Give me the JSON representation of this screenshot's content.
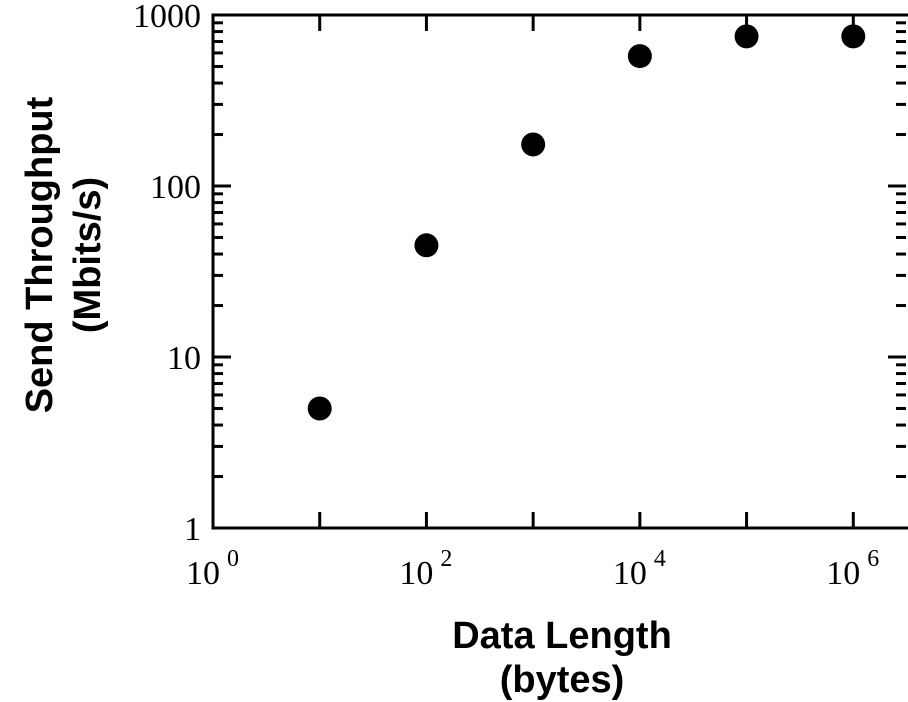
{
  "chart_data": {
    "type": "scatter",
    "title": "",
    "xlabel": "Data Length",
    "xlabel_unit": "(bytes)",
    "ylabel": "Send Throughput",
    "ylabel_unit": "(Mbits/s)",
    "x_scale": "log10",
    "y_scale": "log10",
    "xlim": [
      1,
      10000000
    ],
    "ylim": [
      1,
      1000
    ],
    "x_ticks": [
      {
        "value": 1,
        "base": "10",
        "exp": "0"
      },
      {
        "value": 100,
        "base": "10",
        "exp": "2"
      },
      {
        "value": 10000,
        "base": "10",
        "exp": "4"
      },
      {
        "value": 1000000,
        "base": "10",
        "exp": "6"
      }
    ],
    "y_ticks": [
      {
        "value": 1,
        "label": "1"
      },
      {
        "value": 10,
        "label": "10"
      },
      {
        "value": 100,
        "label": "100"
      },
      {
        "value": 1000,
        "label": "1000"
      }
    ],
    "grid": false,
    "legend": "none",
    "marker_color": "#000000",
    "points": [
      {
        "x": 10,
        "y": 5
      },
      {
        "x": 100,
        "y": 45
      },
      {
        "x": 1000,
        "y": 175
      },
      {
        "x": 10000,
        "y": 575
      },
      {
        "x": 100000,
        "y": 750
      },
      {
        "x": 1000000,
        "y": 750
      }
    ]
  }
}
